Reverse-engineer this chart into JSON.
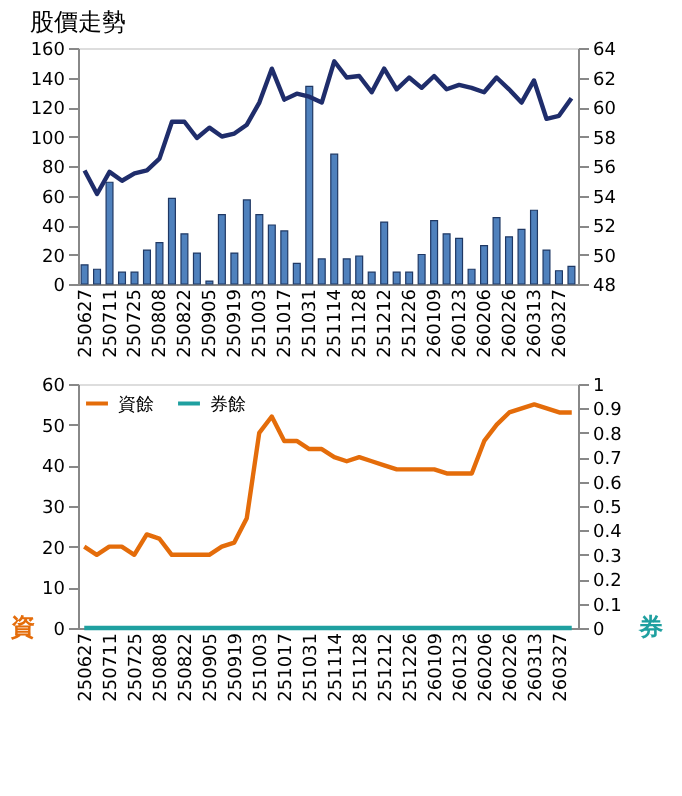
{
  "chart_data": [
    {
      "type": "bar",
      "title": "股價走勢",
      "categories": [
        "250627",
        null,
        "250711",
        null,
        "250725",
        null,
        "250808",
        null,
        "250822",
        null,
        "250905",
        null,
        "250919",
        null,
        "251003",
        null,
        "251017",
        null,
        "251031",
        null,
        "251114",
        null,
        "251128",
        null,
        "251212",
        null,
        "251226",
        null,
        "260109",
        null,
        "260123",
        null,
        "260206",
        null,
        "260226",
        null,
        "260313",
        null,
        "260327",
        null
      ],
      "series": [
        {
          "type": "bar",
          "color": "#4f81bd",
          "values": [
            13,
            10,
            69,
            8,
            8,
            23,
            28,
            58,
            34,
            21,
            2,
            47,
            21,
            57,
            47,
            40,
            36,
            14,
            134,
            17,
            88,
            17,
            19,
            8,
            42,
            8,
            8,
            20,
            43,
            34,
            31,
            10,
            26,
            45,
            32,
            37,
            50,
            23,
            9,
            12
          ]
        },
        {
          "type": "line",
          "axis": "y2",
          "color": "#1f2d6b",
          "values": [
            55.7,
            54.1,
            55.6,
            55.0,
            55.5,
            55.7,
            56.5,
            59.0,
            59.0,
            57.9,
            58.6,
            58.0,
            58.2,
            58.8,
            60.3,
            62.6,
            60.5,
            60.9,
            60.7,
            60.3,
            63.1,
            62.0,
            62.1,
            61.0,
            62.6,
            61.2,
            62.0,
            61.3,
            62.1,
            61.2,
            61.5,
            61.3,
            61.0,
            62.0,
            61.2,
            60.3,
            61.8,
            59.2,
            59.4,
            60.6
          ]
        }
      ],
      "ylim": [
        0,
        160
      ],
      "yticks": [
        0,
        20,
        40,
        60,
        80,
        100,
        120,
        140,
        160
      ],
      "y2lim": [
        48,
        64
      ],
      "y2ticks": [
        48,
        50,
        52,
        54,
        56,
        58,
        60,
        62,
        64
      ],
      "grid": false,
      "legend": false
    },
    {
      "type": "line",
      "ylabel": "資",
      "y2label": "券",
      "categories": [
        "250627",
        null,
        "250711",
        null,
        "250725",
        null,
        "250808",
        null,
        "250822",
        null,
        "250905",
        null,
        "250919",
        null,
        "251003",
        null,
        "251017",
        null,
        "251031",
        null,
        "251114",
        null,
        "251128",
        null,
        "251212",
        null,
        "251226",
        null,
        "260109",
        null,
        "260123",
        null,
        "260206",
        null,
        "260226",
        null,
        "260313",
        null,
        "260327",
        null
      ],
      "series": [
        {
          "name": "資餘",
          "color": "#e46c0a",
          "values": [
            20,
            18,
            20,
            20,
            18,
            23,
            22,
            18,
            18,
            18,
            18,
            20,
            21,
            27,
            48,
            52,
            46,
            46,
            44,
            44,
            42,
            41,
            42,
            41,
            40,
            39,
            39,
            39,
            39,
            38,
            38,
            38,
            46,
            50,
            53,
            54,
            55,
            54,
            53,
            53
          ]
        },
        {
          "name": "券餘",
          "axis": "y2",
          "color": "#1fa0a0",
          "values": [
            0,
            0,
            0,
            0,
            0,
            0,
            0,
            0,
            0,
            0,
            0,
            0,
            0,
            0,
            0,
            0,
            0,
            0,
            0,
            0,
            0,
            0,
            0,
            0,
            0,
            0,
            0,
            0,
            0,
            0,
            0,
            0,
            0,
            0,
            0,
            0,
            0,
            0,
            0,
            0
          ]
        }
      ],
      "ylim": [
        0,
        60
      ],
      "yticks": [
        0,
        10,
        20,
        30,
        40,
        50,
        60
      ],
      "y2lim": [
        0,
        1
      ],
      "y2ticks": [
        0,
        0.1,
        0.2,
        0.3,
        0.4,
        0.5,
        0.6,
        0.7,
        0.8,
        0.9,
        1
      ],
      "grid": false,
      "legend": "top left",
      "marker": "none",
      "line_style": "solid"
    }
  ]
}
